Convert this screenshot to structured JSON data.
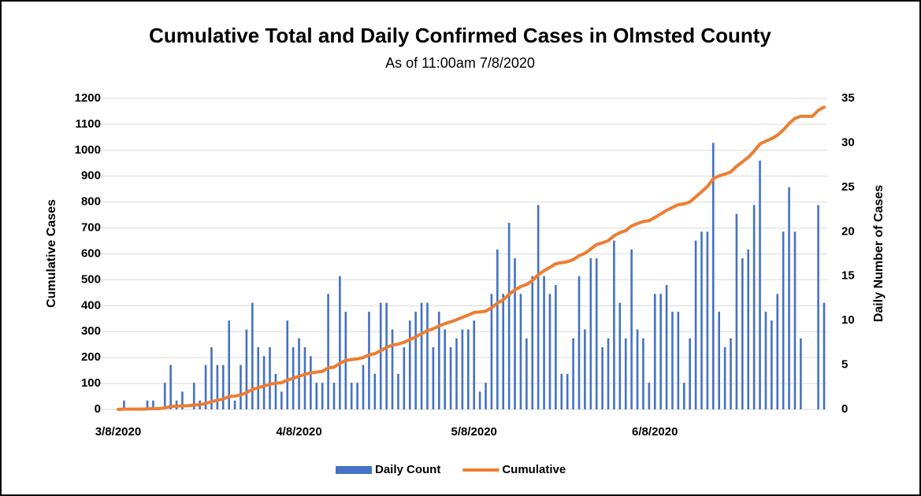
{
  "chart_data": {
    "type": "bar",
    "title": "Cumulative Total and Daily Confirmed Cases in Olmsted County",
    "subtitle": "As of 11:00am 7/8/2020",
    "ylabel": "Cumulative Cases",
    "y2label": "Daily Number of Cases",
    "x": [
      "3/8/2020",
      "3/9/2020",
      "3/10/2020",
      "3/11/2020",
      "3/12/2020",
      "3/13/2020",
      "3/14/2020",
      "3/15/2020",
      "3/16/2020",
      "3/17/2020",
      "3/18/2020",
      "3/19/2020",
      "3/20/2020",
      "3/21/2020",
      "3/22/2020",
      "3/23/2020",
      "3/24/2020",
      "3/25/2020",
      "3/26/2020",
      "3/27/2020",
      "3/28/2020",
      "3/29/2020",
      "3/30/2020",
      "3/31/2020",
      "4/1/2020",
      "4/2/2020",
      "4/3/2020",
      "4/4/2020",
      "4/5/2020",
      "4/6/2020",
      "4/7/2020",
      "4/8/2020",
      "4/9/2020",
      "4/10/2020",
      "4/11/2020",
      "4/12/2020",
      "4/13/2020",
      "4/14/2020",
      "4/15/2020",
      "4/16/2020",
      "4/17/2020",
      "4/18/2020",
      "4/19/2020",
      "4/20/2020",
      "4/21/2020",
      "4/22/2020",
      "4/23/2020",
      "4/24/2020",
      "4/25/2020",
      "4/26/2020",
      "4/27/2020",
      "4/28/2020",
      "4/29/2020",
      "4/30/2020",
      "5/1/2020",
      "5/2/2020",
      "5/3/2020",
      "5/4/2020",
      "5/5/2020",
      "5/6/2020",
      "5/7/2020",
      "5/8/2020",
      "5/9/2020",
      "5/10/2020",
      "5/11/2020",
      "5/12/2020",
      "5/13/2020",
      "5/14/2020",
      "5/15/2020",
      "5/16/2020",
      "5/17/2020",
      "5/18/2020",
      "5/19/2020",
      "5/20/2020",
      "5/21/2020",
      "5/22/2020",
      "5/23/2020",
      "5/24/2020",
      "5/25/2020",
      "5/26/2020",
      "5/27/2020",
      "5/28/2020",
      "5/29/2020",
      "5/30/2020",
      "5/31/2020",
      "6/1/2020",
      "6/2/2020",
      "6/3/2020",
      "6/4/2020",
      "6/5/2020",
      "6/6/2020",
      "6/7/2020",
      "6/8/2020",
      "6/9/2020",
      "6/10/2020",
      "6/11/2020",
      "6/12/2020",
      "6/13/2020",
      "6/14/2020",
      "6/15/2020",
      "6/16/2020",
      "6/17/2020",
      "6/18/2020",
      "6/19/2020",
      "6/20/2020",
      "6/21/2020",
      "6/22/2020",
      "6/23/2020",
      "6/24/2020",
      "6/25/2020",
      "6/26/2020",
      "6/27/2020",
      "6/28/2020",
      "6/29/2020",
      "6/30/2020",
      "7/1/2020",
      "7/2/2020",
      "7/3/2020",
      "7/4/2020",
      "7/5/2020",
      "7/6/2020",
      "7/7/2020"
    ],
    "xticks": [
      "3/8/2020",
      "4/8/2020",
      "5/8/2020",
      "6/8/2020"
    ],
    "series": [
      {
        "name": "Daily Count",
        "type": "bar",
        "axis": "y2",
        "color": "#4472c4",
        "values": [
          0,
          1,
          0,
          0,
          0,
          1,
          1,
          0,
          3,
          5,
          1,
          2,
          0,
          3,
          1,
          5,
          7,
          5,
          5,
          10,
          1,
          5,
          9,
          12,
          7,
          6,
          7,
          4,
          2,
          10,
          7,
          8,
          7,
          6,
          3,
          3,
          13,
          3,
          15,
          11,
          3,
          3,
          5,
          11,
          4,
          12,
          12,
          9,
          4,
          7,
          10,
          11,
          12,
          12,
          7,
          11,
          9,
          7,
          8,
          9,
          9,
          10,
          2,
          3,
          13,
          18,
          13,
          21,
          17,
          13,
          8,
          15,
          23,
          15,
          13,
          14,
          4,
          4,
          8,
          15,
          9,
          17,
          17,
          7,
          8,
          19,
          12,
          8,
          18,
          9,
          8,
          3,
          13,
          13,
          14,
          11,
          11,
          3,
          8,
          19,
          20,
          20,
          30,
          11,
          7,
          8,
          22,
          17,
          18,
          23,
          28,
          11,
          10,
          13,
          20,
          25,
          20,
          8,
          0,
          0,
          23,
          12
        ]
      },
      {
        "name": "Cumulative",
        "type": "line",
        "color": "#ed7d31",
        "values": [
          0,
          1,
          1,
          1,
          1,
          2,
          3,
          3,
          6,
          11,
          12,
          14,
          14,
          17,
          18,
          23,
          30,
          35,
          40,
          50,
          51,
          56,
          65,
          77,
          84,
          90,
          97,
          101,
          103,
          113,
          120,
          128,
          135,
          141,
          144,
          147,
          160,
          163,
          178,
          189,
          192,
          195,
          200,
          211,
          215,
          227,
          239,
          248,
          252,
          259,
          269,
          280,
          292,
          304,
          311,
          322,
          331,
          338,
          346,
          355,
          364,
          374,
          376,
          379,
          392,
          410,
          423,
          444,
          461,
          474,
          482,
          497,
          520,
          535,
          548,
          562,
          566,
          570,
          578,
          593,
          602,
          619,
          636,
          643,
          651,
          670,
          682,
          690,
          708,
          717,
          725,
          728,
          741,
          754,
          768,
          779,
          790,
          793,
          801,
          820,
          840,
          860,
          890,
          901,
          908,
          916,
          938,
          955,
          973,
          996,
          1024,
          1035,
          1045,
          1058,
          1078,
          1103,
          1123,
          1131,
          1131,
          1131,
          1154,
          1166
        ]
      }
    ],
    "ylim": [
      0,
      1200
    ],
    "yticks": [
      0,
      100,
      200,
      300,
      400,
      500,
      600,
      700,
      800,
      900,
      1000,
      1100,
      1200
    ],
    "y2lim": [
      0,
      35
    ],
    "y2ticks": [
      0,
      5,
      10,
      15,
      20,
      25,
      30,
      35
    ],
    "grid": true,
    "legend": "bottom"
  }
}
